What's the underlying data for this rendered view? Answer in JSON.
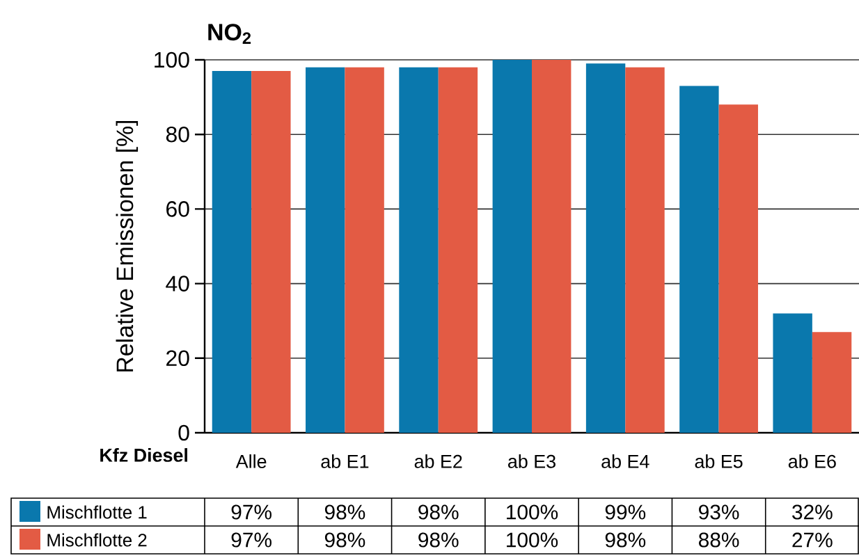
{
  "chart_data": {
    "type": "bar",
    "title": "NO$_{2}$",
    "xlabel": "Kfz Diesel",
    "ylabel": "Relative Emissionen [%]",
    "categories": [
      "Alle",
      "ab E1",
      "ab E2",
      "ab E3",
      "ab E4",
      "ab E5",
      "ab E6"
    ],
    "series": [
      {
        "name": "Mischflotte 1",
        "color": "#0a78ad",
        "values": [
          97,
          98,
          98,
          100,
          99,
          93,
          32
        ],
        "value_labels": [
          "97%",
          "98%",
          "98%",
          "100%",
          "99%",
          "93%",
          "32%"
        ]
      },
      {
        "name": "Mischflotte 2",
        "color": "#e35b44",
        "values": [
          97,
          98,
          98,
          100,
          98,
          88,
          27
        ],
        "value_labels": [
          "97%",
          "98%",
          "98%",
          "100%",
          "98%",
          "88%",
          "27%"
        ]
      }
    ],
    "ylim": [
      0,
      100
    ],
    "yticks": [
      0,
      20,
      40,
      60,
      80,
      100
    ],
    "grid": "y",
    "legend": "bottom"
  }
}
